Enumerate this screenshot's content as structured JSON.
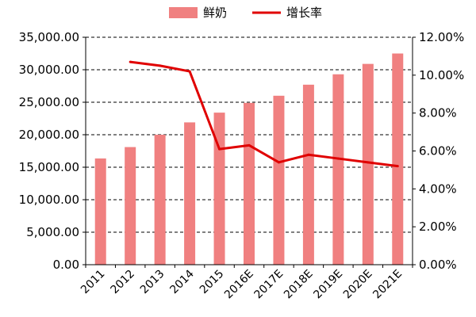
{
  "chart_data": {
    "type": "bar",
    "categories": [
      "2011",
      "2012",
      "2013",
      "2014",
      "2015",
      "2016E",
      "2017E",
      "2018E",
      "2019E",
      "2020E",
      "2021E"
    ],
    "series": [
      {
        "name": "鲜奶",
        "type": "bar",
        "axis": "left",
        "color": "#f08080",
        "values": [
          16350,
          18100,
          20000,
          21900,
          23400,
          24900,
          26000,
          27700,
          29300,
          30900,
          32500
        ]
      },
      {
        "name": "增长率",
        "type": "line",
        "axis": "right",
        "color": "#e00000",
        "values": [
          null,
          10.7,
          10.5,
          10.2,
          6.1,
          6.3,
          5.4,
          5.8,
          5.6,
          5.4,
          5.2
        ]
      }
    ],
    "y_left": {
      "lim": [
        0,
        35000
      ],
      "ticks": [
        "0.00",
        "5,000.00",
        "10,000.00",
        "15,000.00",
        "20,000.00",
        "25,000.00",
        "30,000.00",
        "35,000.00"
      ]
    },
    "y_right": {
      "lim": [
        0,
        12
      ],
      "ticks": [
        "0.00%",
        "2.00%",
        "4.00%",
        "6.00%",
        "8.00%",
        "10.00%",
        "12.00%"
      ]
    },
    "grid": "horizontal dashed",
    "legend": "top-center"
  }
}
